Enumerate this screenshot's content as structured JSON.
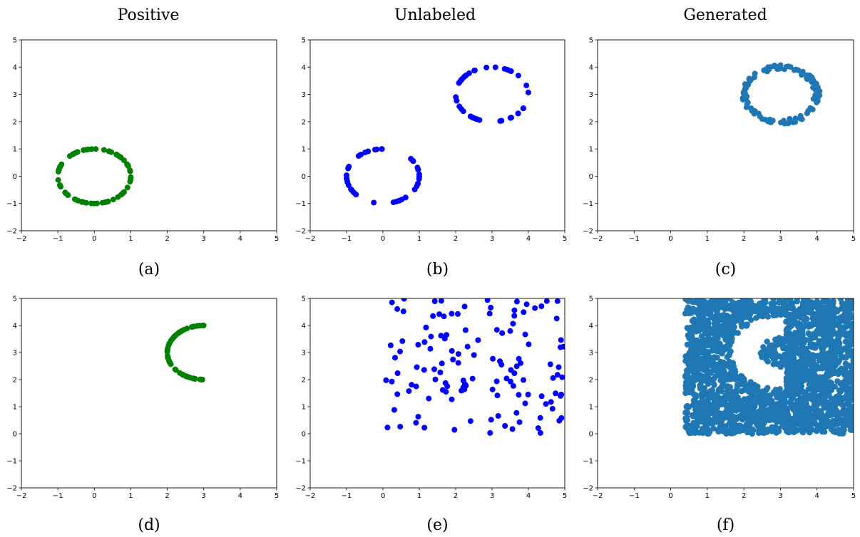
{
  "column_titles": [
    "Positive",
    "Unlabeled",
    "Generated"
  ],
  "colors": {
    "positive": "#008000",
    "unlabeled": "#0000ff",
    "generated": "#1f77b4"
  },
  "chart_data": [
    {
      "id": "a",
      "caption": "(a)",
      "type": "scatter",
      "xlim": [
        -2,
        5
      ],
      "ylim": [
        -2,
        5
      ],
      "xticks": [
        "−2",
        "−1",
        "0",
        "1",
        "2",
        "3",
        "4",
        "5"
      ],
      "yticks": [
        "−2",
        "−1",
        "0",
        "1",
        "2",
        "3",
        "4",
        "5"
      ],
      "color": "#008000",
      "shape": {
        "kind": "circle",
        "center": [
          0,
          0
        ],
        "radius": 1,
        "count": 70,
        "angle_range": [
          0,
          360
        ]
      }
    },
    {
      "id": "b",
      "caption": "(b)",
      "type": "scatter",
      "xlim": [
        -2,
        5
      ],
      "ylim": [
        -2,
        5
      ],
      "xticks": [
        "−2",
        "−1",
        "0",
        "1",
        "2",
        "3",
        "4",
        "5"
      ],
      "yticks": [
        "−2",
        "−1",
        "0",
        "1",
        "2",
        "3",
        "4",
        "5"
      ],
      "color": "#0000ff",
      "shape": {
        "kind": "two_circles",
        "centers": [
          [
            0,
            0
          ],
          [
            3,
            3
          ]
        ],
        "radius": 1,
        "count_each": 40
      }
    },
    {
      "id": "c",
      "caption": "(c)",
      "type": "scatter",
      "xlim": [
        -2,
        5
      ],
      "ylim": [
        -2,
        5
      ],
      "xticks": [
        "−2",
        "−1",
        "0",
        "1",
        "2",
        "3",
        "4",
        "5"
      ],
      "yticks": [
        "−2",
        "−1",
        "0",
        "1",
        "2",
        "3",
        "4",
        "5"
      ],
      "color": "#1f77b4",
      "shape": {
        "kind": "noisy_circle",
        "center": [
          3,
          3
        ],
        "radius": 1,
        "count": 110
      }
    },
    {
      "id": "d",
      "caption": "(d)",
      "type": "scatter",
      "xlim": [
        -2,
        5
      ],
      "ylim": [
        -2,
        5
      ],
      "xticks": [
        "−2",
        "−1",
        "0",
        "1",
        "2",
        "3",
        "4",
        "5"
      ],
      "yticks": [
        "−2",
        "−1",
        "0",
        "1",
        "2",
        "3",
        "4",
        "5"
      ],
      "color": "#008000",
      "shape": {
        "kind": "arc",
        "center": [
          3,
          3
        ],
        "radius": 1,
        "count": 60,
        "angle_range": [
          90,
          270
        ]
      }
    },
    {
      "id": "e",
      "caption": "(e)",
      "type": "scatter",
      "xlim": [
        -2,
        5
      ],
      "ylim": [
        -2,
        5
      ],
      "xticks": [
        "−2",
        "−1",
        "0",
        "1",
        "2",
        "3",
        "4",
        "5"
      ],
      "yticks": [
        "−2",
        "−1",
        "0",
        "1",
        "2",
        "3",
        "4",
        "5"
      ],
      "color": "#0000ff",
      "shape": {
        "kind": "uniform",
        "x_range": [
          0,
          5
        ],
        "y_range": [
          0,
          5
        ],
        "count": 130
      }
    },
    {
      "id": "f",
      "caption": "(f)",
      "type": "scatter",
      "xlim": [
        -2,
        5
      ],
      "ylim": [
        -2,
        5
      ],
      "xticks": [
        "−2",
        "−1",
        "0",
        "1",
        "2",
        "3",
        "4",
        "5"
      ],
      "yticks": [
        "−2",
        "−1",
        "0",
        "1",
        "2",
        "3",
        "4",
        "5"
      ],
      "color": "#1f77b4",
      "shape": {
        "kind": "uniform_minus_arc",
        "x_range": [
          0.4,
          5
        ],
        "y_range": [
          0,
          5
        ],
        "count": 2200,
        "excluded_arc": {
          "center": [
            3,
            3
          ],
          "radius": 1,
          "angle_range": [
            90,
            270
          ]
        }
      }
    }
  ]
}
